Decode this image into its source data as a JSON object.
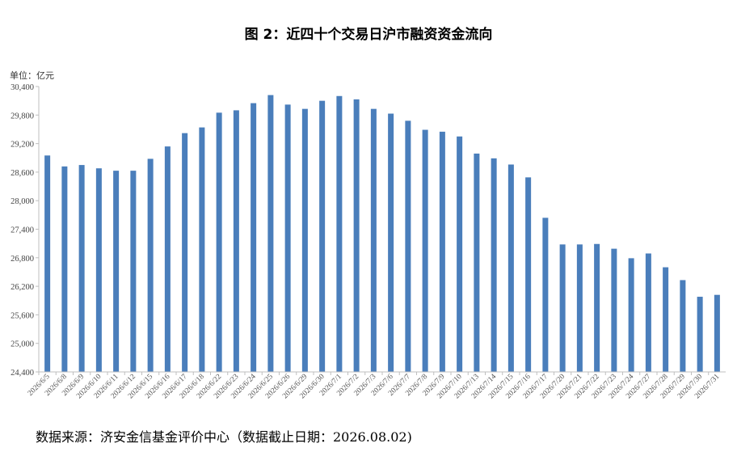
{
  "title": "图 2：近四十个交易日沪市融资资金流向",
  "unit_label": "单位：亿元",
  "source_note": "数据来源：济安金信基金评价中心（数据截止日期：2026.08.02)",
  "colors": {
    "bar": "#4a7ebb",
    "axis": "#bfbfbf",
    "text": "#000000"
  },
  "chart_data": {
    "type": "bar",
    "title": "图 2：近四十个交易日沪市融资资金流向",
    "xlabel": "",
    "ylabel": "单位：亿元",
    "ylim": [
      24400,
      30400
    ],
    "yticks": [
      24400,
      25000,
      25600,
      26200,
      26800,
      27400,
      28000,
      28600,
      29200,
      29800,
      30400
    ],
    "ytick_labels": [
      "24,400",
      "25,000",
      "25,600",
      "26,200",
      "26,800",
      "27,400",
      "28,000",
      "28,600",
      "29,200",
      "29,800",
      "30,400"
    ],
    "grid": false,
    "legend": "none",
    "categories": [
      "2026/6/5",
      "2026/6/8",
      "2026/6/9",
      "2026/6/10",
      "2026/6/11",
      "2026/6/12",
      "2026/6/15",
      "2026/6/16",
      "2026/6/17",
      "2026/6/18",
      "2026/6/22",
      "2026/6/23",
      "2026/6/24",
      "2026/6/25",
      "2026/6/26",
      "2026/6/29",
      "2026/6/30",
      "2026/7/1",
      "2026/7/2",
      "2026/7/3",
      "2026/7/6",
      "2026/7/7",
      "2026/7/8",
      "2026/7/9",
      "2026/7/10",
      "2026/7/13",
      "2026/7/14",
      "2026/7/15",
      "2026/7/16",
      "2026/7/17",
      "2026/7/20",
      "2026/7/21",
      "2026/7/22",
      "2026/7/23",
      "2026/7/24",
      "2026/7/27",
      "2026/7/28",
      "2026/7/29",
      "2026/7/30",
      "2026/7/31"
    ],
    "values": [
      28950,
      28720,
      28750,
      28680,
      28630,
      28630,
      28880,
      29140,
      29420,
      29540,
      29850,
      29900,
      30050,
      30220,
      30020,
      29930,
      30100,
      30200,
      30130,
      29930,
      29830,
      29680,
      29490,
      29450,
      29350,
      28990,
      28890,
      28760,
      28490,
      27640,
      27080,
      27080,
      27090,
      26990,
      26790,
      26890,
      26600,
      26330,
      25980,
      26020
    ]
  }
}
